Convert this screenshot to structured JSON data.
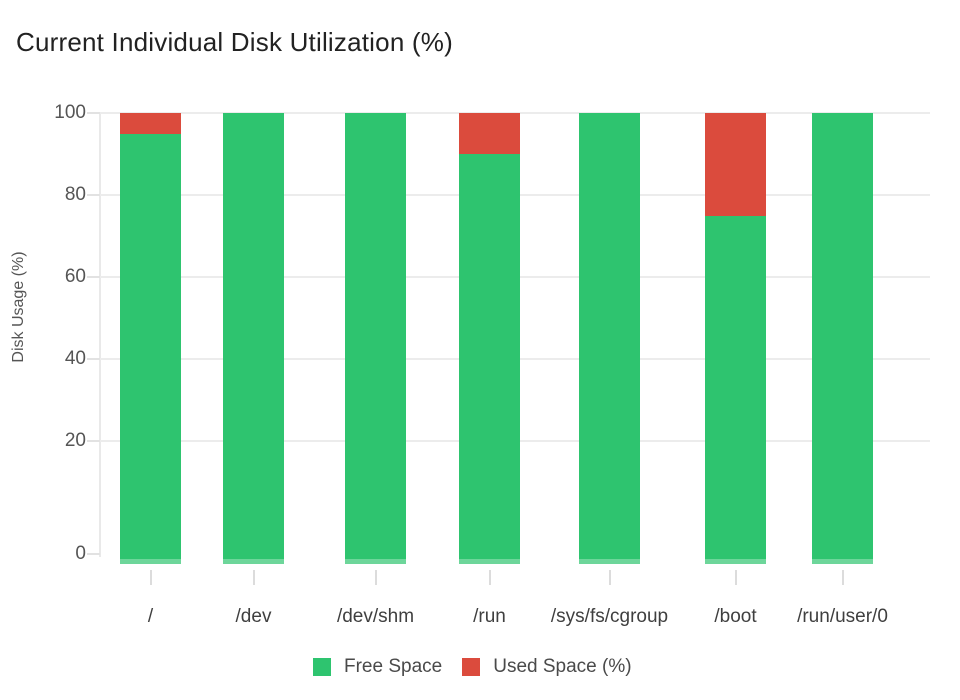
{
  "header": {
    "title": "Current Individual Disk Utilization (%)"
  },
  "chart_data": {
    "type": "bar",
    "stacked": true,
    "title": "Current Individual Disk Utilization (%)",
    "xlabel": "",
    "ylabel": "Disk Usage (%)",
    "categories": [
      "/",
      "/dev",
      "/dev/shm",
      "/run",
      "/sys/fs/cgroup",
      "/boot",
      "/run/user/0"
    ],
    "series": [
      {
        "name": "Free Space",
        "color": "#2ec46f",
        "values": [
          95,
          100,
          100,
          90,
          100,
          75,
          100
        ]
      },
      {
        "name": "Used Space (%)",
        "color": "#db4b3d",
        "values": [
          5,
          0,
          0,
          10,
          0,
          25,
          0
        ]
      }
    ],
    "ylim": [
      0,
      100
    ],
    "y_ticks": [
      100,
      80,
      60,
      40,
      20,
      0
    ],
    "grid": true,
    "legend_position": "bottom"
  },
  "colors": {
    "free": "#2ec46f",
    "used": "#db4b3d",
    "gridline": "#ececec",
    "axis_line": "#e9e9e9",
    "y_tick_label": "#555555",
    "x_tick_label": "#3f3f3f",
    "title_text": "#222222",
    "legend_text": "#4a4a4a"
  }
}
